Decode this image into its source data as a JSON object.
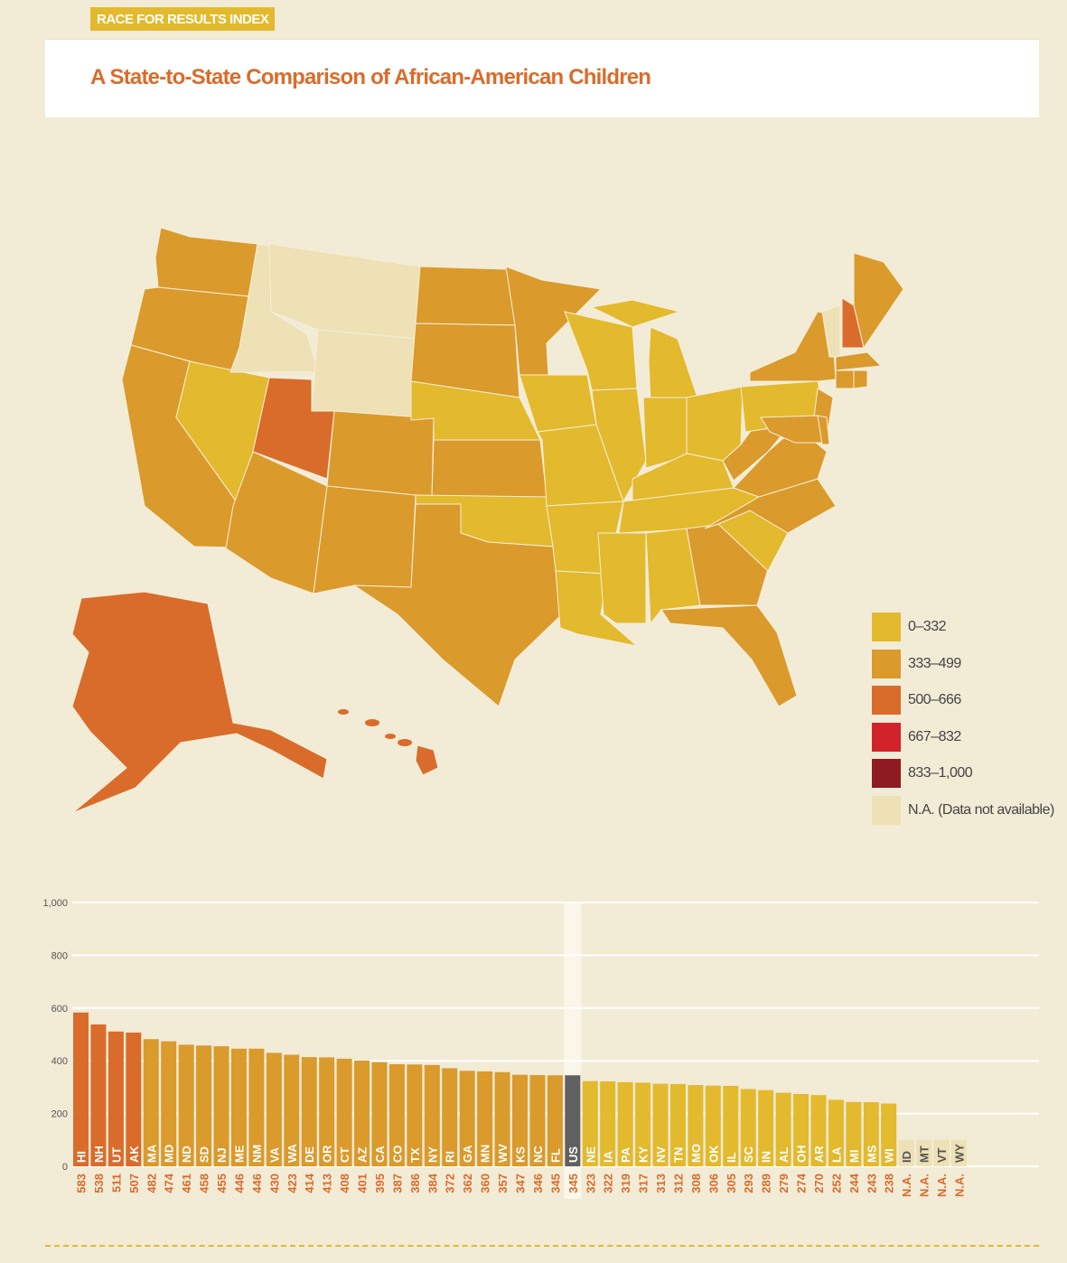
{
  "header": {
    "tag": "RACE FOR RESULTS INDEX",
    "title": "A State-to-State Comparison of African-American Children"
  },
  "colors": {
    "c1": "#e3b92e",
    "c2": "#da9a2c",
    "c3": "#d96c2b",
    "c4": "#d2232a",
    "c5": "#8e1a22",
    "na": "#ede1b5",
    "us": "#606060"
  },
  "legend": [
    {
      "label": "0–332",
      "color": "#e3b92e"
    },
    {
      "label": "333–499",
      "color": "#da9a2c"
    },
    {
      "label": "500–666",
      "color": "#d96c2b"
    },
    {
      "label": "667–832",
      "color": "#d2232a"
    },
    {
      "label": "833–1,000",
      "color": "#8e1a22"
    },
    {
      "label": "N.A. (Data not available)",
      "color": "#ede1b5"
    }
  ],
  "chart_data": {
    "type": "bar",
    "title": "A State-to-State Comparison of African-American Children",
    "ylim": [
      0,
      1000
    ],
    "yticks": [
      "0",
      "200",
      "400",
      "600",
      "800",
      "1,000"
    ],
    "ytick_values": [
      0,
      200,
      400,
      600,
      800,
      1000
    ],
    "categories": [
      "HI",
      "NH",
      "UT",
      "AK",
      "MA",
      "MD",
      "ND",
      "SD",
      "NJ",
      "ME",
      "NM",
      "VA",
      "WA",
      "DE",
      "OR",
      "CT",
      "AZ",
      "CA",
      "CO",
      "TX",
      "NY",
      "RI",
      "GA",
      "MN",
      "WV",
      "KS",
      "NC",
      "FL",
      "US",
      "NE",
      "IA",
      "PA",
      "KY",
      "NV",
      "TN",
      "MO",
      "OK",
      "IL",
      "SC",
      "IN",
      "AL",
      "OH",
      "AR",
      "LA",
      "MI",
      "MS",
      "WI",
      "ID",
      "MT",
      "VT",
      "WY"
    ],
    "values": [
      583,
      538,
      511,
      507,
      482,
      474,
      461,
      458,
      455,
      446,
      446,
      430,
      423,
      414,
      413,
      408,
      401,
      395,
      387,
      386,
      384,
      372,
      362,
      360,
      357,
      347,
      346,
      345,
      345,
      323,
      322,
      319,
      317,
      313,
      312,
      308,
      306,
      305,
      293,
      289,
      279,
      274,
      270,
      252,
      244,
      243,
      238,
      null,
      null,
      null,
      null
    ],
    "value_labels": [
      "583",
      "538",
      "511",
      "507",
      "482",
      "474",
      "461",
      "458",
      "455",
      "446",
      "446",
      "430",
      "423",
      "414",
      "413",
      "408",
      "401",
      "395",
      "387",
      "386",
      "384",
      "372",
      "362",
      "360",
      "357",
      "347",
      "346",
      "345",
      "345",
      "323",
      "322",
      "319",
      "317",
      "313",
      "312",
      "308",
      "306",
      "305",
      "293",
      "289",
      "279",
      "274",
      "270",
      "252",
      "244",
      "243",
      "238",
      "N.A.",
      "N.A.",
      "N.A.",
      "N.A."
    ],
    "grid": true
  }
}
